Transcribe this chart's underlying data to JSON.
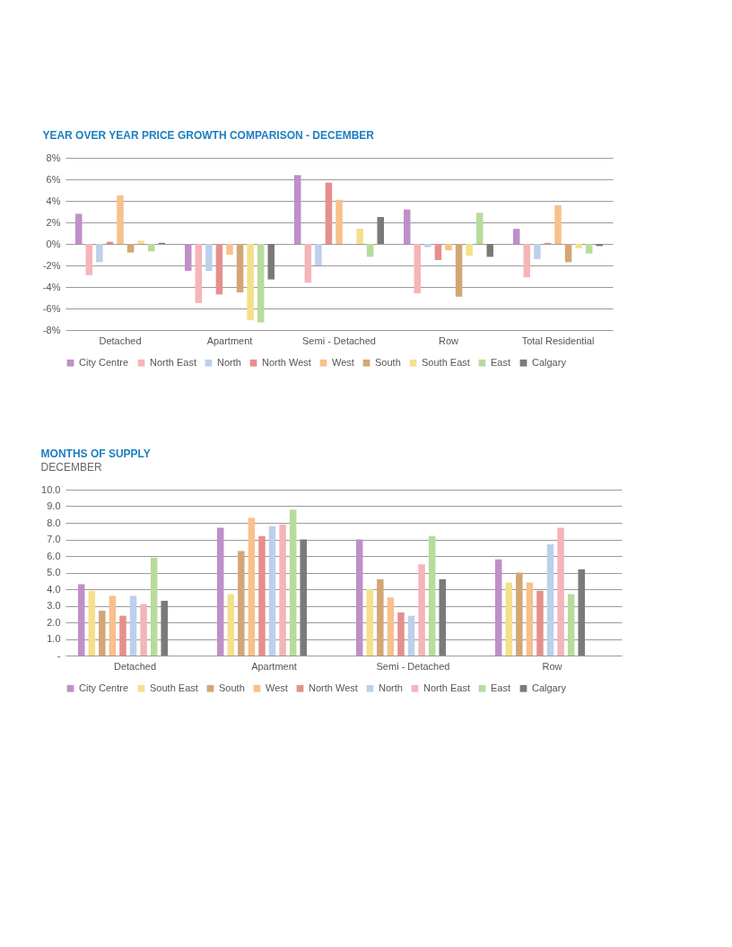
{
  "chart_data": [
    {
      "type": "bar",
      "title": "YEAR OVER YEAR PRICE GROWTH COMPARISON -  DECEMBER",
      "categories": [
        "Detached",
        "Apartment",
        "Semi - Detached",
        "Row",
        "Total Residential"
      ],
      "series": [
        {
          "name": "City Centre",
          "color": "#bf8fc8",
          "values": [
            2.8,
            -2.5,
            6.4,
            3.2,
            1.4
          ]
        },
        {
          "name": "North East",
          "color": "#f4b5b9",
          "values": [
            -2.9,
            -5.5,
            -3.6,
            -4.6,
            -3.1
          ]
        },
        {
          "name": "North",
          "color": "#bcd0ea",
          "values": [
            -1.7,
            -2.5,
            -2.0,
            -0.3,
            -1.4
          ]
        },
        {
          "name": "North West",
          "color": "#e5908c",
          "values": [
            0.2,
            -4.7,
            5.7,
            -1.5,
            0.1
          ]
        },
        {
          "name": "West",
          "color": "#f8c08b",
          "values": [
            4.5,
            -1.0,
            4.1,
            -0.6,
            3.6
          ]
        },
        {
          "name": "South",
          "color": "#d3a676",
          "values": [
            -0.8,
            -4.5,
            null,
            -4.9,
            -1.7
          ]
        },
        {
          "name": "South East",
          "color": "#f3e08a",
          "values": [
            0.3,
            -7.1,
            1.4,
            -1.1,
            -0.4
          ]
        },
        {
          "name": "East",
          "color": "#b7dc9b",
          "values": [
            -0.7,
            -7.3,
            -1.2,
            2.9,
            -0.9
          ]
        },
        {
          "name": "Calgary",
          "color": "#7a7a7a",
          "values": [
            0.1,
            -3.3,
            2.5,
            -1.2,
            -0.2
          ]
        }
      ],
      "ylim": [
        -8,
        8
      ],
      "yticks": [
        {
          "value": -8,
          "label": "-8%"
        },
        {
          "value": -6,
          "label": "-6%"
        },
        {
          "value": -4,
          "label": "-4%"
        },
        {
          "value": -2,
          "label": "-2%"
        },
        {
          "value": 0,
          "label": "0%"
        },
        {
          "value": 2,
          "label": "2%"
        },
        {
          "value": 4,
          "label": "4%"
        },
        {
          "value": 6,
          "label": "6%"
        },
        {
          "value": 8,
          "label": "8%"
        }
      ],
      "grid": "y",
      "legend": "bottom"
    },
    {
      "type": "bar",
      "title": "MONTHS OF SUPPLY",
      "subtitle": "DECEMBER",
      "categories": [
        "Detached",
        "Apartment",
        "Semi - Detached",
        "Row"
      ],
      "series": [
        {
          "name": "City Centre",
          "color": "#bf8fc8",
          "values": [
            4.3,
            7.7,
            7.0,
            5.8
          ]
        },
        {
          "name": "South East",
          "color": "#f3e08a",
          "values": [
            3.9,
            3.7,
            4.0,
            4.4
          ]
        },
        {
          "name": "South",
          "color": "#d3a676",
          "values": [
            2.7,
            6.3,
            4.6,
            5.0
          ]
        },
        {
          "name": "West",
          "color": "#f8c08b",
          "values": [
            3.6,
            8.3,
            3.5,
            4.4
          ]
        },
        {
          "name": "North West",
          "color": "#e5908c",
          "values": [
            2.4,
            7.2,
            2.6,
            3.9
          ]
        },
        {
          "name": "North",
          "color": "#bcd0ea",
          "values": [
            3.6,
            7.8,
            2.4,
            6.7
          ]
        },
        {
          "name": "North East",
          "color": "#f4b5b9",
          "values": [
            3.1,
            7.9,
            5.5,
            7.7
          ]
        },
        {
          "name": "East",
          "color": "#b7dc9b",
          "values": [
            5.9,
            8.8,
            7.2,
            3.7
          ]
        },
        {
          "name": "Calgary",
          "color": "#7a7a7a",
          "values": [
            3.3,
            7.0,
            4.6,
            5.2
          ]
        }
      ],
      "ylim": [
        0,
        10
      ],
      "yticks": [
        {
          "value": 0,
          "label": "-"
        },
        {
          "value": 1,
          "label": "1.0"
        },
        {
          "value": 2,
          "label": "2.0"
        },
        {
          "value": 3,
          "label": "3.0"
        },
        {
          "value": 4,
          "label": "4.0"
        },
        {
          "value": 5,
          "label": "5.0"
        },
        {
          "value": 6,
          "label": "6.0"
        },
        {
          "value": 7,
          "label": "7.0"
        },
        {
          "value": 8,
          "label": "8.0"
        },
        {
          "value": 9,
          "label": "9.0"
        },
        {
          "value": 10,
          "label": "10.0"
        }
      ],
      "grid": "y",
      "legend": "bottom"
    }
  ]
}
